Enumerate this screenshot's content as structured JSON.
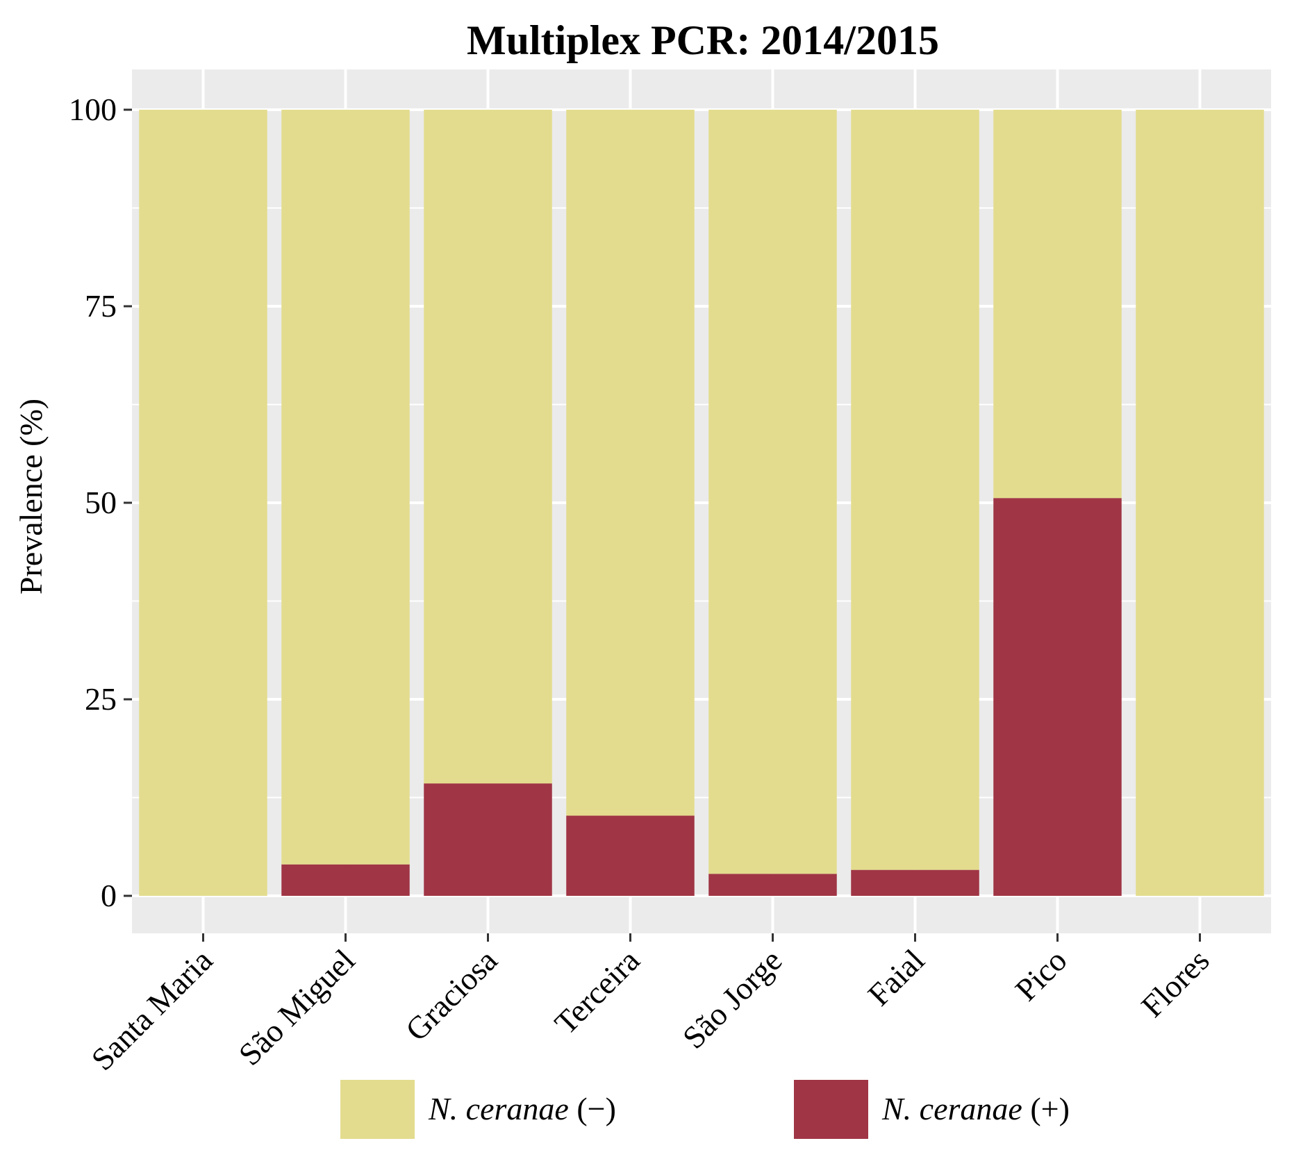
{
  "chart_data": {
    "type": "bar",
    "stacked": true,
    "title": "Multiplex PCR: 2014/2015",
    "xlabel": "",
    "ylabel": "Prevalence (%)",
    "ylim": [
      0,
      105
    ],
    "yticks": [
      0,
      25,
      50,
      75,
      100
    ],
    "grid": true,
    "legend_position": "bottom",
    "categories": [
      "Santa Maria",
      "São Miguel",
      "Graciosa",
      "Terceira",
      "São Jorge",
      "Faial",
      "Pico",
      "Flores"
    ],
    "series": [
      {
        "name": "N. ceranae (+)",
        "legend_italic": "N. ceranae",
        "legend_suffix": " (+)",
        "color": "#a03545",
        "values": [
          0,
          4,
          14.3,
          10.2,
          2.8,
          3.3,
          50.6,
          0
        ]
      },
      {
        "name": "N. ceranae (−)",
        "legend_italic": "N. ceranae",
        "legend_suffix": " (−)",
        "color": "#e3dc8e",
        "values": [
          100,
          96,
          85.7,
          89.8,
          97.2,
          96.7,
          49.4,
          100
        ]
      }
    ],
    "panel_background": "#ebebeb",
    "gridline_color": "#ffffff"
  }
}
